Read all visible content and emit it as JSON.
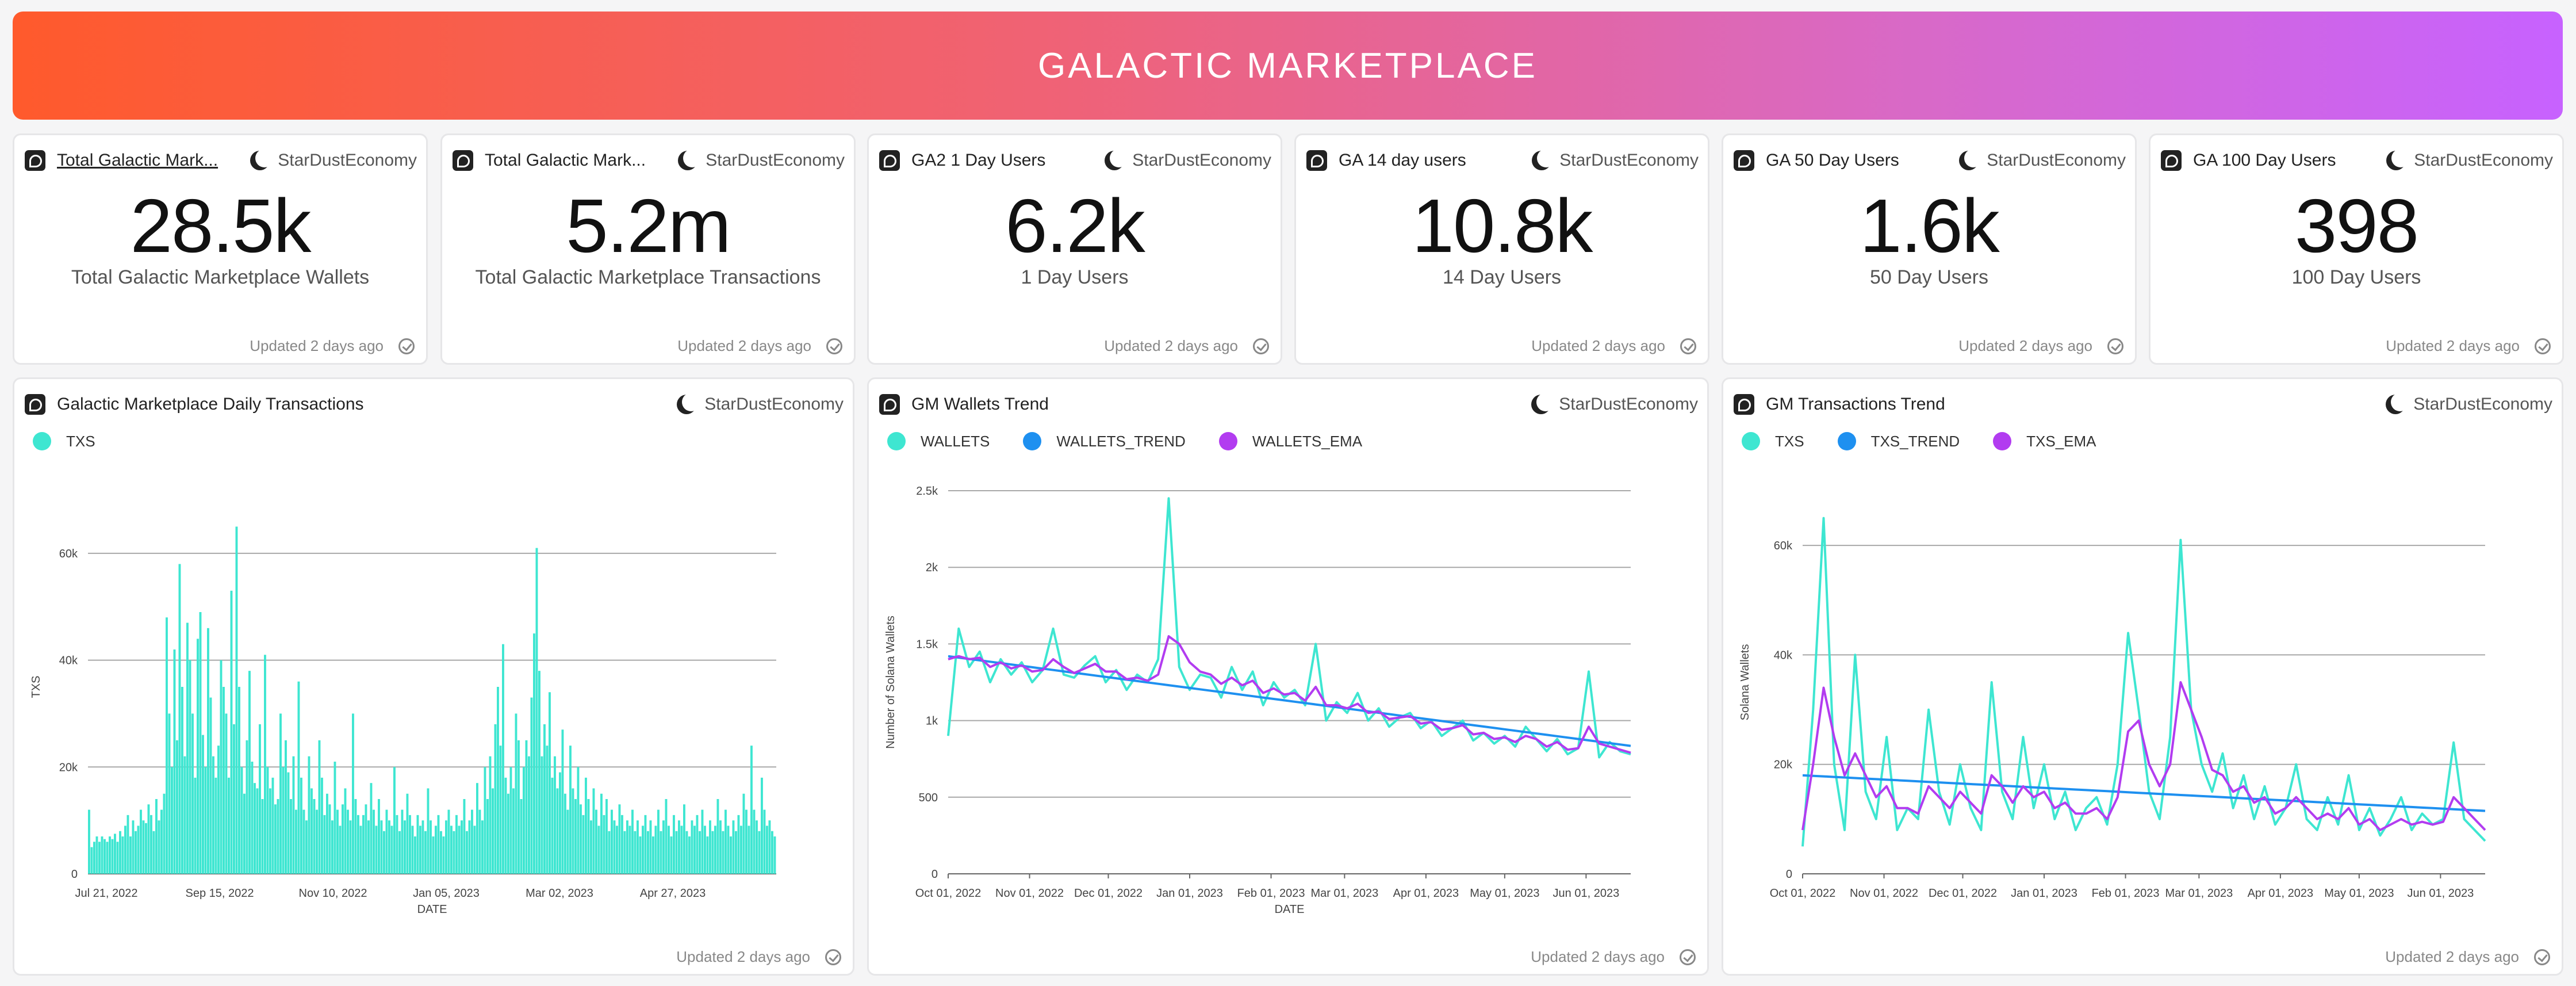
{
  "banner": {
    "title": "GALACTIC MARKETPLACE"
  },
  "colors": {
    "teal": "#3ee6d1",
    "blue": "#1e90f0",
    "purple": "#b23cf0",
    "grid": "#a8a8a8"
  },
  "brand": "StarDustEconomy",
  "updated": "Updated 2 days ago",
  "kpis": [
    {
      "title": "Total Galactic Mark...",
      "value": "28.5k",
      "label": "Total Galactic Marketplace Wallets"
    },
    {
      "title": "Total Galactic Mark...",
      "value": "5.2m",
      "label": "Total Galactic Marketplace Transactions"
    },
    {
      "title": "GA2 1 Day Users",
      "value": "6.2k",
      "label": "1 Day Users"
    },
    {
      "title": "GA 14 day users",
      "value": "10.8k",
      "label": "14 Day Users"
    },
    {
      "title": "GA 50 Day Users",
      "value": "1.6k",
      "label": "50 Day Users"
    },
    {
      "title": "GA 100 Day Users",
      "value": "398",
      "label": "100 Day Users"
    }
  ],
  "chart_data": [
    {
      "type": "bar",
      "title": "Galactic Marketplace Daily Transactions",
      "xlabel": "DATE",
      "ylabel": "TXS",
      "legend": [
        "TXS"
      ],
      "ylim": [
        0,
        70000
      ],
      "yticks": [
        0,
        20000,
        40000,
        60000
      ],
      "ytick_labels": [
        "0",
        "20k",
        "40k",
        "60k"
      ],
      "xticks": [
        "Jul 21, 2022",
        "Sep 15, 2022",
        "Nov 10, 2022",
        "Jan 05, 2023",
        "Mar 02, 2023",
        "Apr 27, 2023"
      ],
      "series": [
        {
          "name": "TXS",
          "values": [
            12000,
            5000,
            6000,
            7000,
            6000,
            7000,
            6500,
            6000,
            7000,
            6500,
            7500,
            6000,
            8000,
            7000,
            9000,
            11000,
            7000,
            10000,
            8000,
            9000,
            12000,
            10000,
            9500,
            13000,
            11000,
            8000,
            14000,
            10000,
            12000,
            15000,
            48000,
            30000,
            20000,
            42000,
            25000,
            58000,
            35000,
            22000,
            47000,
            40000,
            30000,
            18000,
            44000,
            49000,
            26000,
            20000,
            46000,
            33000,
            22000,
            18000,
            24000,
            40000,
            35000,
            30000,
            18000,
            53000,
            28000,
            65000,
            35000,
            20000,
            15000,
            25000,
            38000,
            21000,
            17000,
            16000,
            28000,
            14000,
            41000,
            20000,
            16000,
            18000,
            13000,
            14000,
            30000,
            20000,
            25000,
            19000,
            14000,
            22000,
            12000,
            36000,
            18000,
            12000,
            10000,
            22000,
            16000,
            14000,
            12000,
            25000,
            18000,
            11000,
            15000,
            13000,
            10000,
            21000,
            12000,
            9000,
            13000,
            16000,
            12000,
            10000,
            30000,
            14000,
            11000,
            9000,
            11000,
            13000,
            10000,
            17000,
            12000,
            9000,
            14000,
            10000,
            8000,
            12000,
            10000,
            9000,
            20000,
            11000,
            8000,
            12000,
            10000,
            15000,
            11000,
            9000,
            7000,
            11000,
            9000,
            10000,
            8000,
            16000,
            10000,
            7000,
            9000,
            11000,
            8000,
            7000,
            10000,
            12000,
            9000,
            8000,
            11000,
            9000,
            10000,
            14000,
            8000,
            10000,
            12000,
            9000,
            17000,
            12000,
            10000,
            20000,
            14000,
            22000,
            16000,
            28000,
            35000,
            24000,
            43000,
            18000,
            15000,
            20000,
            16000,
            30000,
            25000,
            14000,
            20000,
            25000,
            22000,
            33000,
            45000,
            61000,
            38000,
            22000,
            28000,
            24000,
            34000,
            18000,
            22000,
            16000,
            19000,
            27000,
            15000,
            12000,
            24000,
            16000,
            14000,
            20000,
            13000,
            11000,
            18000,
            14000,
            10000,
            16000,
            12000,
            9000,
            15000,
            11000,
            14000,
            8000,
            12000,
            10000,
            9000,
            13000,
            11000,
            8000,
            10000,
            9000,
            12000,
            8000,
            10000,
            7000,
            9000,
            11000,
            8000,
            10000,
            7000,
            9000,
            12000,
            8000,
            10000,
            14000,
            9000,
            7000,
            11000,
            8000,
            10000,
            9000,
            13000,
            8000,
            7000,
            10000,
            9000,
            11000,
            8000,
            12000,
            9000,
            7000,
            10000,
            8000,
            9000,
            14000,
            10000,
            8000,
            12000,
            9000,
            7000,
            10000,
            8000,
            11000,
            9000,
            15000,
            12000,
            9000,
            24000,
            12000,
            10000,
            8000,
            18000,
            12000,
            9000,
            10000,
            8000,
            7000
          ]
        }
      ]
    },
    {
      "type": "line",
      "title": "GM Wallets Trend",
      "xlabel": "DATE",
      "ylabel": "Number of Solana Wallets",
      "legend": [
        "WALLETS",
        "WALLETS_TREND",
        "WALLETS_EMA"
      ],
      "ylim": [
        0,
        2500
      ],
      "yticks": [
        0,
        500,
        1000,
        1500,
        2000,
        2500
      ],
      "ytick_labels": [
        "0",
        "500",
        "1k",
        "1.5k",
        "2k",
        "2.5k"
      ],
      "xticks": [
        "Oct 01, 2022",
        "Nov 01, 2022",
        "Dec 01, 2022",
        "Jan 01, 2023",
        "Feb 01, 2023",
        "Mar 01, 2023",
        "Apr 01, 2023",
        "May 01, 2023",
        "Jun 01, 2023"
      ],
      "xtick_days": [
        0,
        31,
        61,
        92,
        123,
        151,
        182,
        212,
        243
      ],
      "x_days": [
        0,
        4,
        8,
        12,
        16,
        20,
        24,
        28,
        32,
        36,
        40,
        44,
        48,
        52,
        56,
        60,
        64,
        68,
        72,
        76,
        80,
        84,
        88,
        92,
        96,
        100,
        104,
        108,
        112,
        116,
        120,
        124,
        128,
        132,
        136,
        140,
        144,
        148,
        152,
        156,
        160,
        164,
        168,
        172,
        176,
        180,
        184,
        188,
        192,
        196,
        200,
        204,
        208,
        212,
        216,
        220,
        224,
        228,
        232,
        236,
        240,
        244,
        248,
        252,
        256,
        260
      ],
      "series": [
        {
          "name": "WALLETS",
          "values": [
            900,
            1600,
            1350,
            1450,
            1250,
            1400,
            1300,
            1380,
            1250,
            1330,
            1600,
            1300,
            1280,
            1360,
            1420,
            1250,
            1330,
            1200,
            1300,
            1250,
            1400,
            2450,
            1350,
            1200,
            1300,
            1280,
            1150,
            1350,
            1200,
            1320,
            1100,
            1250,
            1150,
            1200,
            1100,
            1500,
            1000,
            1120,
            1050,
            1180,
            1000,
            1080,
            960,
            1020,
            1050,
            950,
            1000,
            900,
            950,
            1000,
            870,
            920,
            850,
            900,
            830,
            960,
            880,
            800,
            880,
            780,
            820,
            1320,
            760,
            860,
            800,
            780
          ]
        },
        {
          "name": "WALLETS_TREND",
          "values": [
            1420,
            1411,
            1402,
            1393,
            1384,
            1375,
            1366,
            1357,
            1348,
            1339,
            1330,
            1321,
            1312,
            1303,
            1294,
            1285,
            1276,
            1267,
            1258,
            1249,
            1240,
            1231,
            1222,
            1213,
            1204,
            1195,
            1186,
            1177,
            1168,
            1159,
            1150,
            1141,
            1132,
            1123,
            1114,
            1105,
            1096,
            1087,
            1078,
            1069,
            1060,
            1051,
            1042,
            1033,
            1024,
            1015,
            1006,
            997,
            988,
            979,
            970,
            961,
            952,
            943,
            934,
            925,
            916,
            907,
            898,
            889,
            880,
            871,
            862,
            853,
            844,
            835
          ]
        },
        {
          "name": "WALLETS_EMA",
          "values": [
            1400,
            1420,
            1400,
            1410,
            1350,
            1380,
            1340,
            1360,
            1320,
            1330,
            1400,
            1350,
            1310,
            1340,
            1370,
            1320,
            1320,
            1270,
            1280,
            1260,
            1300,
            1550,
            1500,
            1380,
            1320,
            1300,
            1240,
            1280,
            1230,
            1260,
            1180,
            1210,
            1170,
            1180,
            1130,
            1220,
            1100,
            1100,
            1080,
            1110,
            1050,
            1060,
            1010,
            1020,
            1030,
            980,
            990,
            940,
            950,
            970,
            910,
            920,
            880,
            890,
            860,
            900,
            880,
            830,
            860,
            810,
            820,
            960,
            850,
            830,
            810,
            790
          ]
        }
      ]
    },
    {
      "type": "line",
      "title": "GM Transactions Trend",
      "xlabel": "",
      "ylabel": "Solana Wallets",
      "legend": [
        "TXS",
        "TXS_TREND",
        "TXS_EMA"
      ],
      "ylim": [
        0,
        70000
      ],
      "yticks": [
        0,
        20000,
        40000,
        60000
      ],
      "ytick_labels": [
        "0",
        "20k",
        "40k",
        "60k"
      ],
      "xticks": [
        "Oct 01, 2022",
        "Nov 01, 2022",
        "Dec 01, 2022",
        "Jan 01, 2023",
        "Feb 01, 2023",
        "Mar 01, 2023",
        "Apr 01, 2023",
        "May 01, 2023",
        "Jun 01, 2023"
      ],
      "xtick_days": [
        0,
        31,
        61,
        92,
        123,
        151,
        182,
        212,
        243
      ],
      "x_days": [
        0,
        4,
        8,
        12,
        16,
        20,
        24,
        28,
        32,
        36,
        40,
        44,
        48,
        52,
        56,
        60,
        64,
        68,
        72,
        76,
        80,
        84,
        88,
        92,
        96,
        100,
        104,
        108,
        112,
        116,
        120,
        124,
        128,
        132,
        136,
        140,
        144,
        148,
        152,
        156,
        160,
        164,
        168,
        172,
        176,
        180,
        184,
        188,
        192,
        196,
        200,
        204,
        208,
        212,
        216,
        220,
        224,
        228,
        232,
        236,
        240,
        244,
        248,
        252,
        256,
        260
      ],
      "series": [
        {
          "name": "TXS",
          "values": [
            5000,
            30000,
            65000,
            20000,
            8000,
            40000,
            15000,
            10000,
            25000,
            8000,
            12000,
            10000,
            30000,
            15000,
            9000,
            20000,
            12000,
            8000,
            35000,
            15000,
            10000,
            25000,
            12000,
            20000,
            10000,
            15000,
            8000,
            12000,
            14000,
            9000,
            20000,
            44000,
            30000,
            15000,
            10000,
            25000,
            61000,
            30000,
            20000,
            15000,
            22000,
            12000,
            18000,
            10000,
            16000,
            9000,
            12000,
            20000,
            10000,
            8000,
            14000,
            9000,
            18000,
            8000,
            12000,
            7000,
            10000,
            14000,
            8000,
            11000,
            9000,
            10000,
            24000,
            10000,
            8000,
            6000
          ]
        },
        {
          "name": "TXS_TREND",
          "values": [
            18000,
            17900,
            17800,
            17700,
            17600,
            17500,
            17400,
            17300,
            17200,
            17100,
            17000,
            16900,
            16800,
            16700,
            16600,
            16500,
            16400,
            16300,
            16200,
            16100,
            16000,
            15900,
            15800,
            15700,
            15600,
            15500,
            15400,
            15300,
            15200,
            15100,
            15000,
            14900,
            14800,
            14700,
            14600,
            14500,
            14400,
            14300,
            14200,
            14100,
            14000,
            13900,
            13800,
            13700,
            13600,
            13500,
            13400,
            13300,
            13200,
            13100,
            13000,
            12900,
            12800,
            12700,
            12600,
            12500,
            12400,
            12300,
            12200,
            12100,
            12000,
            11900,
            11800,
            11700,
            11600,
            11500
          ]
        },
        {
          "name": "TXS_EMA",
          "values": [
            8000,
            20000,
            34000,
            25000,
            18000,
            22000,
            18000,
            14000,
            16000,
            12000,
            12000,
            11000,
            16000,
            14000,
            12000,
            15000,
            13000,
            11000,
            18000,
            16000,
            13000,
            16000,
            14000,
            15000,
            12000,
            13000,
            11000,
            11000,
            12000,
            10000,
            14000,
            26000,
            28000,
            20000,
            16000,
            20000,
            35000,
            30000,
            25000,
            19000,
            18000,
            15000,
            16000,
            13000,
            14000,
            11000,
            12000,
            14000,
            12000,
            10000,
            11000,
            10000,
            12000,
            9000,
            10000,
            8000,
            9000,
            10000,
            9000,
            9500,
            9000,
            9500,
            14000,
            12000,
            10000,
            8000
          ]
        }
      ]
    }
  ]
}
